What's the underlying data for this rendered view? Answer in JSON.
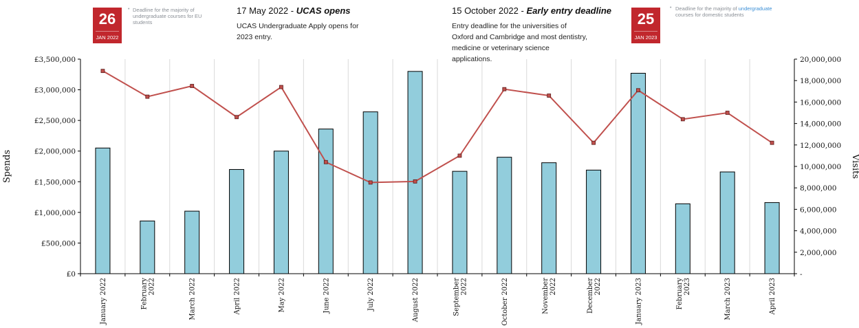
{
  "events": {
    "eu": {
      "day": "26",
      "month": "JAN 2022",
      "bullet": "•",
      "note": "Deadline for the majority of undergraduate courses for EU students"
    },
    "ucas": {
      "date": "17 May 2022",
      "sep": "-",
      "label": "UCAS opens",
      "body": "UCAS Undergraduate Apply opens for 2023 entry."
    },
    "early": {
      "date": "15 October 2022",
      "sep": "-",
      "label": "Early entry deadline",
      "body": "Entry deadline for the universities of Oxford and Cambridge and most dentistry, medicine or veterinary science applications."
    },
    "domestic": {
      "day": "25",
      "month": "JAN 2023",
      "bullet": "•",
      "note_pre": "Deadline for the majority of",
      "note_link": "undergraduate",
      "note_post": "courses for domestic students"
    }
  },
  "chart_data": {
    "type": "bar",
    "categories": [
      "January 2022",
      "February 2022",
      "March 2022",
      "April 2022",
      "May 2022",
      "June 2022",
      "July 2022",
      "August 2022",
      "September 2022",
      "October 2022",
      "November 2022",
      "December 2022",
      "January 2023",
      "February 2023",
      "March 2023",
      "April 2023"
    ],
    "series": [
      {
        "name": "Spends",
        "type": "bar",
        "axis": "left",
        "values": [
          2050000,
          860000,
          1020000,
          1700000,
          2000000,
          2360000,
          2640000,
          3300000,
          1670000,
          1900000,
          1810000,
          1690000,
          3270000,
          1140000,
          1660000,
          1160000
        ]
      },
      {
        "name": "Visits",
        "type": "line",
        "axis": "right",
        "values": [
          18900000,
          16500000,
          17500000,
          14600000,
          17400000,
          10400000,
          8500000,
          8600000,
          11000000,
          17200000,
          16600000,
          12200000,
          17100000,
          14400000,
          15000000,
          12200000
        ]
      }
    ],
    "ylabel": "Spends",
    "y2label": "Visits",
    "ylim": [
      0,
      3500000
    ],
    "y2lim": [
      0,
      20000000
    ],
    "yticks": [
      "£0",
      "£500,000",
      "£1,000,000",
      "£1,500,000",
      "£2,000,000",
      "£2,500,000",
      "£3,000,000",
      "£3,500,000"
    ],
    "y2ticks": [
      "-",
      "2,000,000",
      "4,000,000",
      "6,000,000",
      "8,000,000",
      "10,000,000",
      "12,000,000",
      "14,000,000",
      "16,000,000",
      "18,000,000",
      "20,000,000"
    ],
    "xtick_lines": [
      [
        "January 2022"
      ],
      [
        "February",
        "2022"
      ],
      [
        "March 2022"
      ],
      [
        "April 2022"
      ],
      [
        "May 2022"
      ],
      [
        "June 2022"
      ],
      [
        "July 2022"
      ],
      [
        "August 2022"
      ],
      [
        "September",
        "2022"
      ],
      [
        "October 2022"
      ],
      [
        "November",
        "2022"
      ],
      [
        "December",
        "2022"
      ],
      [
        "January 2023"
      ],
      [
        "February",
        "2023"
      ],
      [
        "March 2023"
      ],
      [
        "April 2023"
      ]
    ],
    "colors": {
      "bar": "#92cddc",
      "bar_edge": "#000000",
      "line": "#c0504d",
      "marker": "#c0504d",
      "grid": "#d9d9d9"
    },
    "grid": "vertical"
  }
}
